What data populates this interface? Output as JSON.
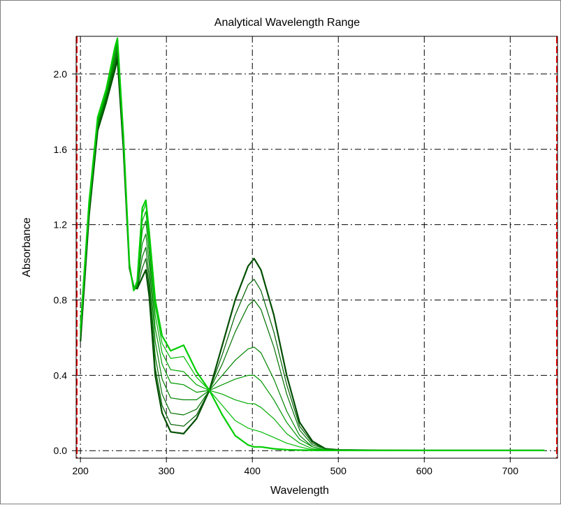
{
  "chart_data": {
    "type": "line",
    "title": "Analytical Wavelength Range",
    "xlabel": "Wavelength",
    "ylabel": "Absorbance",
    "xlim": [
      195,
      755
    ],
    "ylim": [
      -0.04,
      2.2
    ],
    "xticks": [
      200,
      300,
      400,
      500,
      600,
      700
    ],
    "xtick_labels": [
      "200",
      "300",
      "400",
      "500",
      "600",
      "700"
    ],
    "yticks": [
      0.0,
      0.4,
      0.8,
      1.2,
      1.6,
      2.0
    ],
    "ytick_labels": [
      "0.0",
      "0.4",
      "0.8",
      "1.2",
      "1.6",
      "2.0"
    ],
    "grid": true,
    "range_markers": [
      195,
      755
    ],
    "colors": {
      "background": "#ffffff",
      "grid": "#000000",
      "range_marker": "#ff0000",
      "series_dark": "#004d00",
      "series_light": "#00cc00"
    },
    "x": [
      200,
      210,
      220,
      230,
      240,
      243,
      250,
      257,
      262,
      266,
      272,
      276,
      280,
      287,
      295,
      305,
      320,
      335,
      350,
      365,
      380,
      395,
      402,
      410,
      425,
      440,
      455,
      470,
      485,
      500,
      550,
      600,
      650,
      700,
      740
    ],
    "series": [
      {
        "values": [
          0.58,
          1.25,
          1.7,
          1.85,
          2.02,
          2.08,
          1.6,
          0.97,
          0.87,
          0.86,
          0.92,
          0.96,
          0.82,
          0.4,
          0.2,
          0.1,
          0.09,
          0.17,
          0.32,
          0.56,
          0.8,
          0.98,
          1.02,
          0.96,
          0.72,
          0.4,
          0.15,
          0.05,
          0.01,
          0.004,
          0.002,
          0.001,
          0.001,
          0.001,
          0.001
        ]
      },
      {
        "values": [
          0.59,
          1.26,
          1.71,
          1.86,
          2.04,
          2.1,
          1.61,
          0.97,
          0.86,
          0.86,
          0.97,
          1.02,
          0.87,
          0.44,
          0.24,
          0.14,
          0.13,
          0.19,
          0.32,
          0.51,
          0.72,
          0.88,
          0.91,
          0.85,
          0.63,
          0.35,
          0.13,
          0.04,
          0.01,
          0.004,
          0.002,
          0.001,
          0.001,
          0.001,
          0.001
        ]
      },
      {
        "values": [
          0.6,
          1.27,
          1.72,
          1.87,
          2.06,
          2.12,
          1.62,
          0.97,
          0.86,
          0.87,
          1.03,
          1.08,
          0.92,
          0.5,
          0.3,
          0.2,
          0.19,
          0.22,
          0.32,
          0.46,
          0.63,
          0.77,
          0.8,
          0.75,
          0.55,
          0.3,
          0.11,
          0.03,
          0.01,
          0.004,
          0.002,
          0.001,
          0.001,
          0.001,
          0.001
        ]
      },
      {
        "values": [
          0.61,
          1.28,
          1.73,
          1.88,
          2.08,
          2.14,
          1.63,
          0.98,
          0.85,
          0.87,
          1.1,
          1.15,
          0.99,
          0.58,
          0.38,
          0.28,
          0.27,
          0.27,
          0.32,
          0.4,
          0.48,
          0.54,
          0.55,
          0.52,
          0.38,
          0.21,
          0.08,
          0.02,
          0.005,
          0.003,
          0.002,
          0.001,
          0.001,
          0.001,
          0.001
        ]
      },
      {
        "values": [
          0.62,
          1.29,
          1.74,
          1.89,
          2.1,
          2.16,
          1.64,
          0.98,
          0.85,
          0.88,
          1.17,
          1.22,
          1.05,
          0.65,
          0.46,
          0.36,
          0.35,
          0.31,
          0.32,
          0.35,
          0.38,
          0.4,
          0.4,
          0.37,
          0.27,
          0.15,
          0.06,
          0.02,
          0.005,
          0.003,
          0.002,
          0.001,
          0.001,
          0.001,
          0.001
        ]
      },
      {
        "values": [
          0.63,
          1.3,
          1.75,
          1.9,
          2.12,
          2.17,
          1.65,
          0.98,
          0.85,
          0.89,
          1.22,
          1.27,
          1.1,
          0.72,
          0.52,
          0.43,
          0.42,
          0.35,
          0.32,
          0.3,
          0.27,
          0.25,
          0.25,
          0.23,
          0.17,
          0.09,
          0.04,
          0.01,
          0.004,
          0.002,
          0.001,
          0.001,
          0.001,
          0.001,
          0.001
        ]
      },
      {
        "values": [
          0.64,
          1.31,
          1.76,
          1.91,
          2.13,
          2.18,
          1.66,
          0.99,
          0.85,
          0.9,
          1.26,
          1.31,
          1.14,
          0.77,
          0.57,
          0.49,
          0.5,
          0.39,
          0.32,
          0.24,
          0.16,
          0.12,
          0.11,
          0.1,
          0.07,
          0.04,
          0.02,
          0.005,
          0.002,
          0.001,
          0.001,
          0.001,
          0.001,
          0.001,
          0.001
        ]
      },
      {
        "values": [
          0.65,
          1.32,
          1.77,
          1.92,
          2.14,
          2.19,
          1.67,
          0.99,
          0.85,
          0.9,
          1.29,
          1.33,
          1.16,
          0.8,
          0.61,
          0.53,
          0.56,
          0.42,
          0.32,
          0.19,
          0.08,
          0.03,
          0.02,
          0.02,
          0.01,
          0.005,
          0.003,
          0.002,
          0.001,
          0.001,
          0.001,
          0.001,
          0.001,
          0.001,
          0.001
        ]
      }
    ]
  }
}
